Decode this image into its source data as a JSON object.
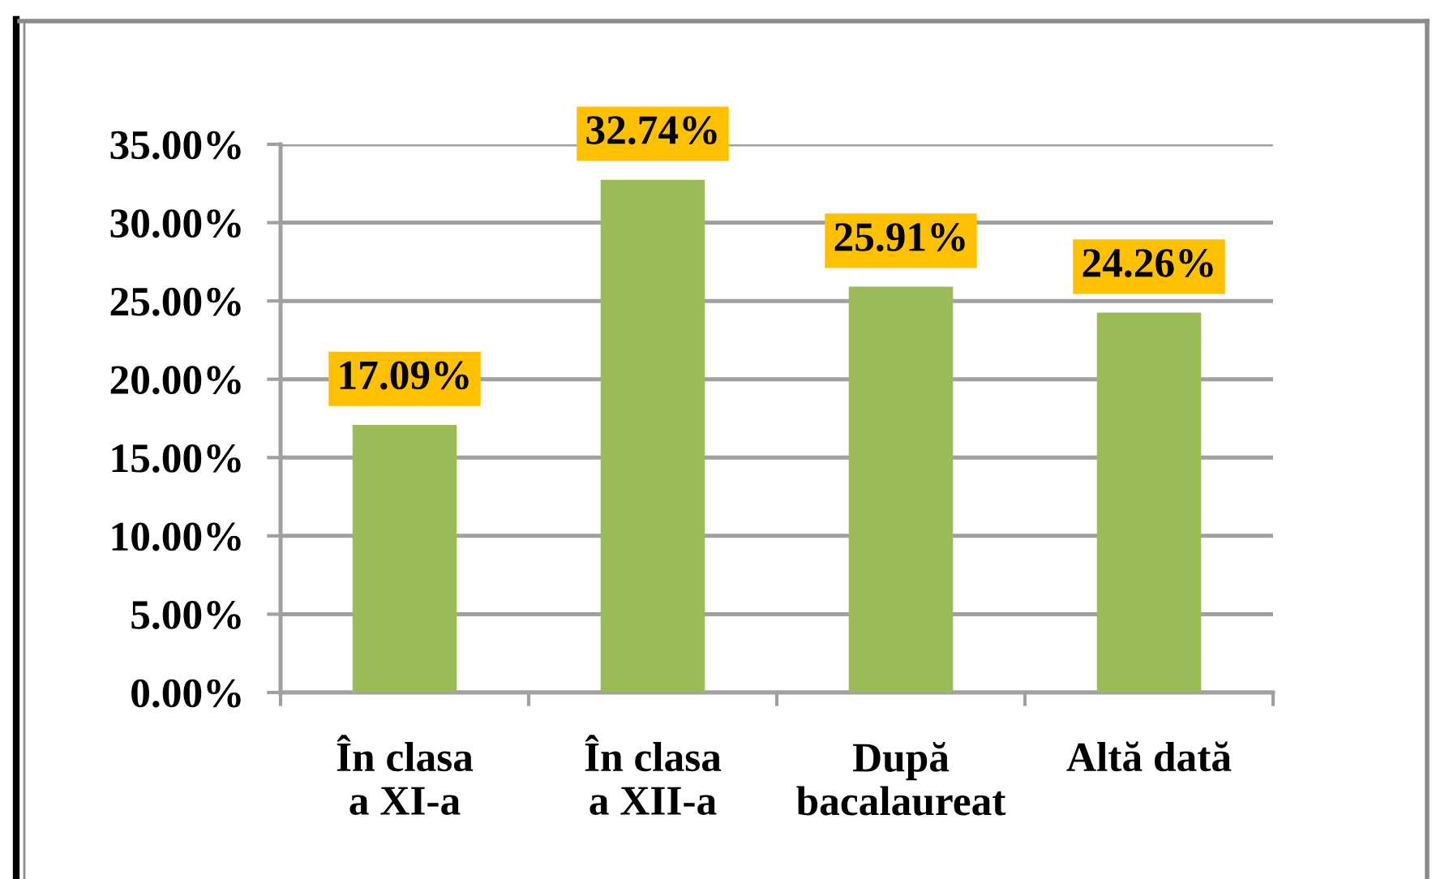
{
  "chart_data": {
    "type": "bar",
    "categories": [
      "În clasa\na XI-a",
      "În clasa\na XII-a",
      "După\nbacalaureat",
      "Altă dată"
    ],
    "values": [
      17.09,
      32.74,
      25.91,
      24.26
    ],
    "value_labels": [
      "17.09%",
      "32.74%",
      "25.91%",
      "24.26%"
    ],
    "color": "#9bbb59",
    "ylim": [
      0,
      35
    ],
    "yticks": [
      {
        "value": 0,
        "label": "0.00%"
      },
      {
        "value": 5,
        "label": "5.00%"
      },
      {
        "value": 10,
        "label": "10.00%"
      },
      {
        "value": 15,
        "label": "15.00%"
      },
      {
        "value": 20,
        "label": "20.00%"
      },
      {
        "value": 25,
        "label": "25.00%"
      },
      {
        "value": 30,
        "label": "30.00%"
      },
      {
        "value": 35,
        "label": "35.00%"
      }
    ],
    "grid": "y"
  }
}
